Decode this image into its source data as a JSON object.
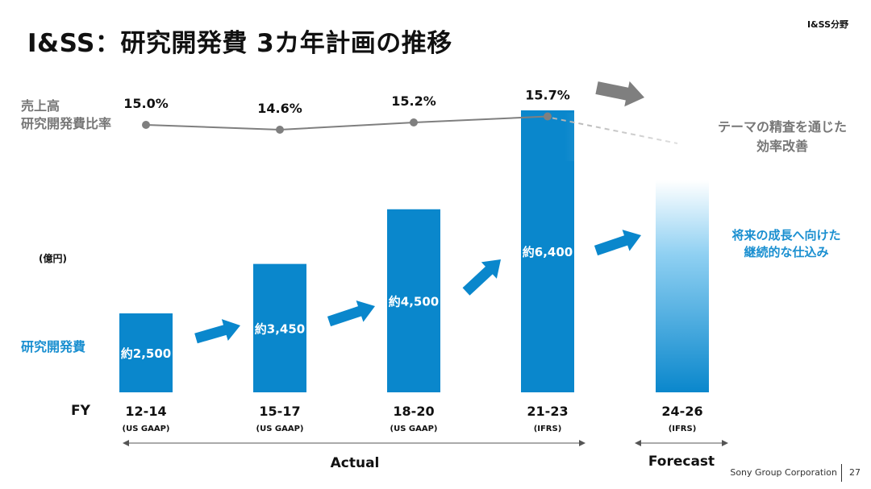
{
  "slide": {
    "title": "I&SS：研究開発費 3カ年計画の推移",
    "corner_label": "I&SS分野",
    "ratio_label_line1": "売上高",
    "ratio_label_line2": "研究開発費比率",
    "unit": "(億円)",
    "rd_label": "研究開発費",
    "fy_label": "FY",
    "right_gray_line1": "テーマの精査を通じた",
    "right_gray_line2": "効率改善",
    "right_blue_line1": "将来の成長へ向けた",
    "right_blue_line2": "継続的な仕込み",
    "actual_label": "Actual",
    "forecast_label": "Forecast",
    "footer": "Sony Group Corporation",
    "page_number": "27"
  },
  "colors": {
    "bar": "#0a87cc",
    "rd_label": "#1a8fd0",
    "line": "#7f7f7f",
    "arrow_blue": "#0a87cc",
    "arrow_gray": "#7f7f7f"
  },
  "chart_data": [
    {
      "type": "bar",
      "categories": [
        "12-14",
        "15-17",
        "18-20",
        "21-23",
        "24-26"
      ],
      "sublabels": [
        "(US GAAP)",
        "(US GAAP)",
        "(US GAAP)",
        "(IFRS)",
        "(IFRS)"
      ],
      "values": [
        2500,
        3450,
        4500,
        6400,
        null
      ],
      "value_labels": [
        "約2,500",
        "約3,450",
        "約4,500",
        "約6,400",
        ""
      ],
      "ylabel": "(億円)",
      "ylim": [
        1200,
        6800
      ],
      "forecast_bar_note": "gradient bar, no value"
    },
    {
      "type": "line",
      "categories": [
        "12-14",
        "15-17",
        "18-20",
        "21-23"
      ],
      "values": [
        15.0,
        14.6,
        15.2,
        15.7
      ],
      "value_labels": [
        "15.0%",
        "14.6%",
        "15.2%",
        "15.7%"
      ],
      "ylim": [
        14.0,
        16.0
      ]
    }
  ]
}
